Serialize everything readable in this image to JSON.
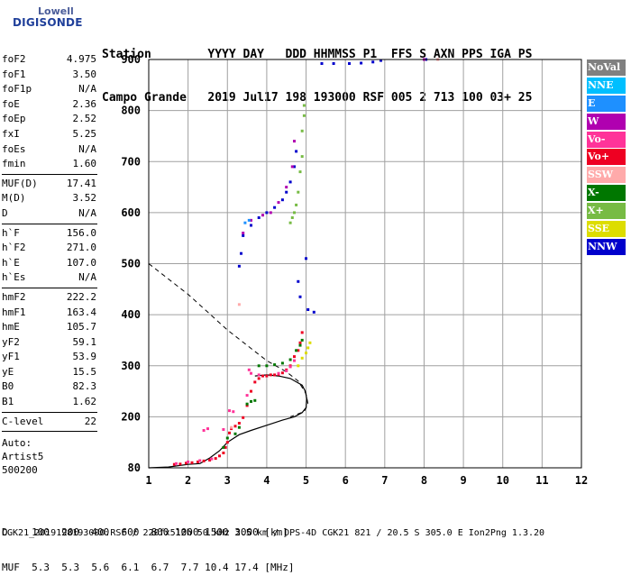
{
  "logo": {
    "line1": "Lowell",
    "line2": "DIGISONDE"
  },
  "header": {
    "row1": "Station        YYYY DAY   DDD HHMMSS P1  FFS S AXN PPS IGA PS",
    "row2": "Campo Grande   2019 Jul17 198 193000 RSF 005 2 713 100 03+ 25"
  },
  "parameters": [
    [
      [
        "foF2",
        "4.975"
      ],
      [
        "foF1",
        "3.50"
      ],
      [
        "foF1p",
        "N/A"
      ],
      [
        "foE",
        "2.36"
      ],
      [
        "foEp",
        "2.52"
      ],
      [
        "fxI",
        "5.25"
      ],
      [
        "foEs",
        "N/A"
      ],
      [
        "fmin",
        "1.60"
      ]
    ],
    [
      [
        "MUF(D)",
        "17.41"
      ],
      [
        "M(D)",
        "3.52"
      ],
      [
        "D",
        "N/A"
      ]
    ],
    [
      [
        "h`F",
        "156.0"
      ],
      [
        "h`F2",
        "271.0"
      ],
      [
        "h`E",
        "107.0"
      ],
      [
        "h`Es",
        "N/A"
      ]
    ],
    [
      [
        "hmF2",
        "222.2"
      ],
      [
        "hmF1",
        "163.4"
      ],
      [
        "hmE",
        "105.7"
      ],
      [
        "yF2",
        "59.1"
      ],
      [
        "yF1",
        "53.9"
      ],
      [
        "yE",
        "15.5"
      ],
      [
        "B0",
        "82.3"
      ],
      [
        "B1",
        "1.62"
      ]
    ],
    [
      [
        "C-level",
        "22"
      ]
    ]
  ],
  "auto": [
    "Auto:",
    "Artist5",
    "500200"
  ],
  "d_muf": {
    "d_line": "D    100  200  400  600  800 1000 1500 3000 [km]",
    "muf_line": "MUF  5.3  5.3  5.6  6.1  6.7  7.7 10.4 17.4 [MHz]"
  },
  "footer": "CGK21_2019198193000.RSF / 220fx512h 50 kHz 2.5 km / DPS-4D CGK21 821 / 20.5 S 305.0 E Ion2Png 1.3.20",
  "legend": [
    {
      "label": "NoVal",
      "color": "#808080"
    },
    {
      "label": "NNE",
      "color": "#00bfff"
    },
    {
      "label": "E",
      "color": "#1e90ff"
    },
    {
      "label": "W",
      "color": "#b000b0"
    },
    {
      "label": "Vo-",
      "color": "#ff3399"
    },
    {
      "label": "Vo+",
      "color": "#ee0022"
    },
    {
      "label": "SSW",
      "color": "#ffaaaa"
    },
    {
      "label": "X-",
      "color": "#007700"
    },
    {
      "label": "X+",
      "color": "#77bb44"
    },
    {
      "label": "SSE",
      "color": "#dddd00"
    },
    {
      "label": "NNW",
      "color": "#0000cc"
    }
  ],
  "chart_data": {
    "type": "scatter",
    "x_ticks": [
      "1",
      "2",
      "3",
      "4",
      "5",
      "6",
      "7",
      "8",
      "9",
      "10",
      "11",
      "12"
    ],
    "y_ticks": [
      "80",
      "200",
      "300",
      "400",
      "500",
      "600",
      "700",
      "800",
      "900"
    ],
    "xlim": [
      1,
      12
    ],
    "y_mapping": [
      [
        80,
        0
      ],
      [
        200,
        1
      ],
      [
        300,
        2
      ],
      [
        400,
        3
      ],
      [
        500,
        4
      ],
      [
        600,
        5
      ],
      [
        700,
        6
      ],
      [
        800,
        7
      ],
      [
        900,
        8
      ]
    ],
    "grid": true,
    "ionogram_points": [
      {
        "series": "Vo+",
        "pts": [
          [
            1.65,
            88
          ],
          [
            1.8,
            89
          ],
          [
            1.95,
            91
          ],
          [
            2.1,
            92
          ],
          [
            2.25,
            94
          ],
          [
            2.4,
            96
          ],
          [
            2.55,
            98
          ],
          [
            2.7,
            102
          ],
          [
            2.8,
            108
          ],
          [
            2.9,
            115
          ],
          [
            2.95,
            128
          ],
          [
            3.0,
            140
          ],
          [
            3.05,
            162
          ],
          [
            3.1,
            172
          ],
          [
            3.2,
            178
          ],
          [
            3.3,
            185
          ],
          [
            3.4,
            198
          ],
          [
            3.5,
            222
          ],
          [
            3.6,
            250
          ],
          [
            3.7,
            268
          ],
          [
            3.8,
            275
          ],
          [
            3.9,
            280
          ],
          [
            4.0,
            280
          ],
          [
            4.1,
            282
          ],
          [
            4.2,
            282
          ],
          [
            4.3,
            283
          ],
          [
            4.4,
            286
          ],
          [
            4.5,
            292
          ],
          [
            4.6,
            300
          ],
          [
            4.7,
            318
          ],
          [
            4.8,
            330
          ],
          [
            4.85,
            345
          ],
          [
            4.9,
            365
          ]
        ]
      },
      {
        "series": "Vo-",
        "pts": [
          [
            1.7,
            90
          ],
          [
            2.0,
            94
          ],
          [
            2.3,
            97
          ],
          [
            2.6,
            101
          ],
          [
            2.5,
            172
          ],
          [
            2.4,
            168
          ],
          [
            2.9,
            170
          ],
          [
            3.05,
            212
          ],
          [
            3.15,
            210
          ],
          [
            3.5,
            242
          ],
          [
            3.6,
            285
          ],
          [
            3.55,
            292
          ],
          [
            3.8,
            282
          ],
          [
            4.3,
            285
          ],
          [
            4.5,
            290
          ],
          [
            4.6,
            298
          ],
          [
            4.7,
            310
          ]
        ]
      },
      {
        "series": "X-",
        "pts": [
          [
            2.9,
            128
          ],
          [
            3.0,
            150
          ],
          [
            3.2,
            160
          ],
          [
            3.3,
            175
          ],
          [
            3.5,
            225
          ],
          [
            3.6,
            230
          ],
          [
            3.7,
            232
          ],
          [
            3.8,
            300
          ],
          [
            4.0,
            300
          ],
          [
            4.2,
            302
          ],
          [
            4.4,
            305
          ],
          [
            4.6,
            312
          ],
          [
            4.75,
            330
          ],
          [
            4.85,
            340
          ],
          [
            4.9,
            350
          ]
        ]
      },
      {
        "series": "X+",
        "pts": [
          [
            4.6,
            580
          ],
          [
            4.65,
            590
          ],
          [
            4.7,
            600
          ],
          [
            4.75,
            615
          ],
          [
            4.8,
            640
          ],
          [
            4.85,
            680
          ],
          [
            4.9,
            710
          ],
          [
            4.9,
            760
          ],
          [
            4.95,
            790
          ],
          [
            4.95,
            810
          ]
        ]
      },
      {
        "series": "SSE",
        "pts": [
          [
            4.8,
            300
          ],
          [
            4.9,
            315
          ],
          [
            5.0,
            325
          ],
          [
            5.05,
            335
          ],
          [
            5.1,
            345
          ]
        ]
      },
      {
        "series": "NNW",
        "pts": [
          [
            3.3,
            495
          ],
          [
            3.35,
            520
          ],
          [
            3.4,
            555
          ],
          [
            3.6,
            575
          ],
          [
            3.8,
            590
          ],
          [
            4.0,
            600
          ],
          [
            4.2,
            610
          ],
          [
            4.4,
            625
          ],
          [
            4.5,
            640
          ],
          [
            4.6,
            660
          ],
          [
            4.7,
            690
          ],
          [
            4.75,
            720
          ],
          [
            4.85,
            435
          ],
          [
            5.05,
            410
          ],
          [
            5.2,
            405
          ],
          [
            4.8,
            465
          ],
          [
            5.0,
            510
          ],
          [
            5.4,
            892
          ],
          [
            5.7,
            892
          ],
          [
            6.1,
            892
          ],
          [
            6.4,
            893
          ],
          [
            6.7,
            895
          ],
          [
            6.9,
            898
          ],
          [
            8.05,
            900
          ]
        ]
      },
      {
        "series": "W",
        "pts": [
          [
            3.4,
            560
          ],
          [
            3.6,
            585
          ],
          [
            3.9,
            595
          ],
          [
            4.1,
            600
          ],
          [
            4.3,
            620
          ],
          [
            4.5,
            650
          ],
          [
            4.65,
            690
          ],
          [
            4.7,
            740
          ],
          [
            8.0,
            900
          ]
        ]
      },
      {
        "series": "E",
        "pts": [
          [
            3.45,
            580
          ],
          [
            3.55,
            585
          ]
        ]
      },
      {
        "series": "SSW",
        "pts": [
          [
            3.1,
            175
          ],
          [
            3.3,
            420
          ],
          [
            8.35,
            900
          ]
        ]
      }
    ],
    "dashed_curve": [
      [
        1,
        500
      ],
      [
        1.5,
        470
      ],
      [
        2,
        440
      ],
      [
        2.5,
        405
      ],
      [
        3,
        370
      ],
      [
        3.5,
        340
      ],
      [
        4,
        310
      ],
      [
        4.5,
        288
      ],
      [
        4.8,
        270
      ],
      [
        5,
        245
      ],
      [
        5.05,
        225
      ],
      [
        4.95,
        210
      ],
      [
        4.6,
        200
      ]
    ],
    "profile_curve": [
      [
        1,
        80
      ],
      [
        1.5,
        82
      ],
      [
        2,
        88
      ],
      [
        2.3,
        90
      ],
      [
        2.4,
        95
      ],
      [
        2.55,
        103
      ],
      [
        2.8,
        120
      ],
      [
        3,
        140
      ],
      [
        3.3,
        158
      ],
      [
        3.6,
        168
      ],
      [
        4,
        180
      ],
      [
        4.4,
        192
      ],
      [
        4.7,
        200
      ],
      [
        4.9,
        208
      ],
      [
        5,
        218
      ],
      [
        5.02,
        235
      ],
      [
        4.98,
        250
      ],
      [
        4.9,
        262
      ],
      [
        4.6,
        275
      ],
      [
        4.3,
        280
      ],
      [
        4.0,
        282
      ],
      [
        3.7,
        280
      ]
    ]
  }
}
